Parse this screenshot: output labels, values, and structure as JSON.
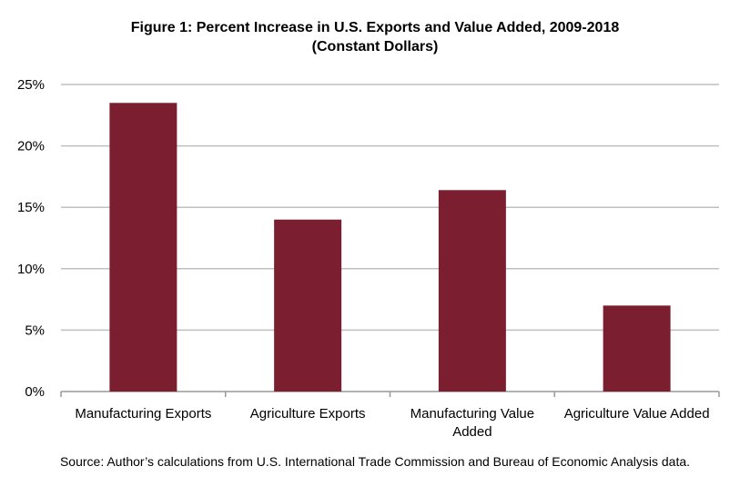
{
  "chart_data": {
    "type": "bar",
    "title": "Figure 1: Percent Increase in U.S. Exports and Value Added, 2009-2018",
    "subtitle": "(Constant Dollars)",
    "categories": [
      [
        "Manufacturing Exports"
      ],
      [
        "Agriculture Exports"
      ],
      [
        "Manufacturing Value",
        "Added"
      ],
      [
        "Agriculture Value Added"
      ]
    ],
    "values": [
      23.5,
      14.0,
      16.4,
      7.0
    ],
    "ylim": [
      0,
      25
    ],
    "yticks": [
      "0%",
      "5%",
      "10%",
      "15%",
      "20%",
      "25%"
    ],
    "ytick_values": [
      0,
      5,
      10,
      15,
      20,
      25
    ],
    "grid": true,
    "legend": "none",
    "bar_color": "#7b1e30",
    "grid_color": "#bfbfbf",
    "source": "Source: Author’s calculations from U.S. International Trade Commission and Bureau of Economic Analysis data."
  }
}
